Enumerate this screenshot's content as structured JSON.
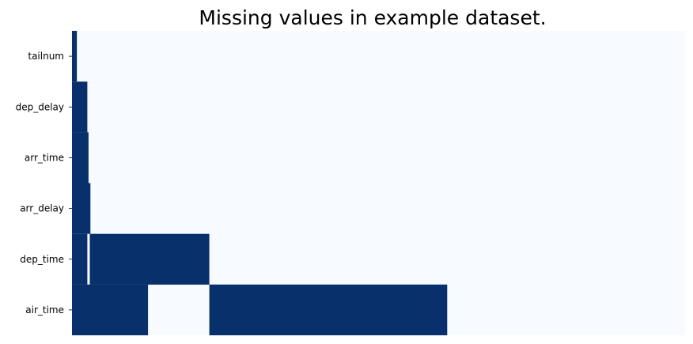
{
  "chart_data": {
    "type": "heatmap",
    "title": "Missing values in example dataset.",
    "xlabel": "",
    "ylabel": "",
    "x_tick_labels": [],
    "rows": [
      "tailnum",
      "dep_delay",
      "arr_time",
      "arr_delay",
      "dep_time",
      "air_time"
    ],
    "xlim": [
      0,
      1
    ],
    "colormap": "Blues",
    "colors": {
      "missing": "#08306b",
      "present": "#f7fbff"
    },
    "missing_ranges": {
      "tailnum": [
        [
          0.0,
          0.008
        ]
      ],
      "dep_delay": [
        [
          0.0,
          0.025
        ]
      ],
      "arr_time": [
        [
          0.0,
          0.027
        ]
      ],
      "arr_delay": [
        [
          0.0,
          0.03
        ]
      ],
      "dep_time": [
        [
          0.0,
          0.025
        ],
        [
          0.029,
          0.224
        ]
      ],
      "air_time": [
        [
          0.0,
          0.124
        ],
        [
          0.224,
          0.612
        ]
      ]
    },
    "grid": false,
    "legend": "none"
  }
}
